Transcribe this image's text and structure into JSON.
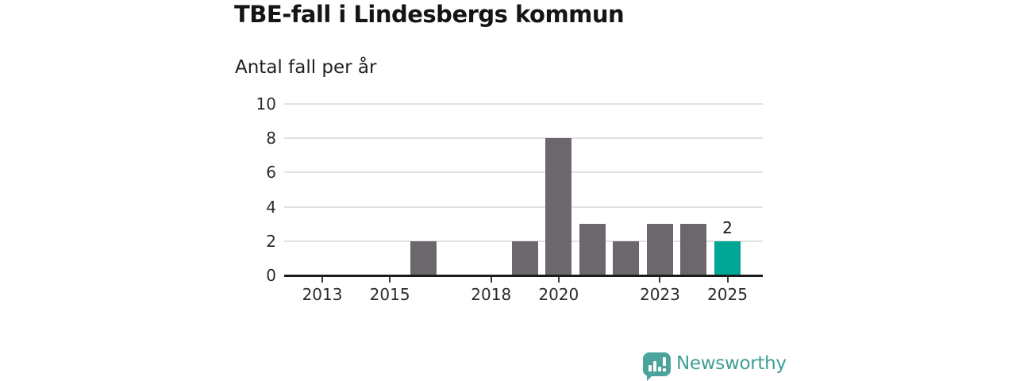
{
  "header": {
    "title": "TBE-fall i Lindesbergs kommun",
    "subtitle": "Antal fall per år"
  },
  "chart_data": {
    "type": "bar",
    "title": "TBE-fall i Lindesbergs kommun",
    "ylabel": "Antal fall per år",
    "xlabel": "",
    "categories": [
      "2012",
      "2013",
      "2014",
      "2015",
      "2016",
      "2017",
      "2018",
      "2019",
      "2020",
      "2021",
      "2022",
      "2023",
      "2024",
      "2025"
    ],
    "values": [
      0,
      0,
      0,
      0,
      2,
      0,
      0,
      2,
      8,
      3,
      2,
      3,
      3,
      2
    ],
    "ylim": [
      0,
      10
    ],
    "y_ticks": [
      0,
      2,
      4,
      6,
      8,
      10
    ],
    "x_tick_years": [
      "2013",
      "2015",
      "2018",
      "2020",
      "2023",
      "2025"
    ],
    "grid": true,
    "legend": false,
    "bar_color": "#6b676c",
    "highlight_color": "#00a796",
    "highlight_category": "2025",
    "highlight_value_label": "2"
  },
  "footer": {
    "brand_name": "Newsworthy",
    "brand_text_color": "#3f9d96",
    "brand_icon_color": "#4aa49c"
  }
}
